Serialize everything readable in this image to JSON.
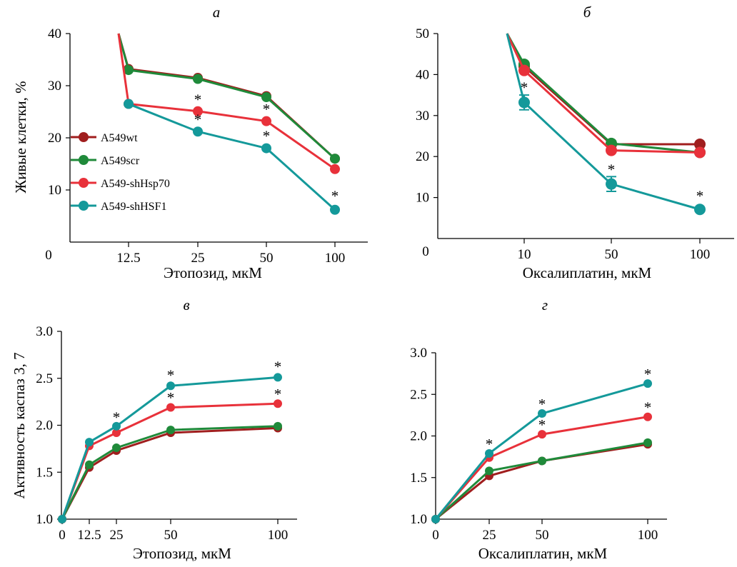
{
  "figure": {
    "ylabel_top": "Живые клетки, %",
    "ylabel_bottom": "Активность каспаз 3, 7"
  },
  "colors": {
    "A549wt": "#a01e1e",
    "A549scr": "#1f8a3a",
    "A549-shHsp70": "#e8313a",
    "A549-shHSF1": "#14999a"
  },
  "legend": [
    "A549wt",
    "A549scr",
    "A549-shHsp70",
    "A549-shHSF1"
  ],
  "chart_data": [
    {
      "type": "line",
      "panel": "a",
      "title": "а",
      "xlabel": "Этопозид, мкМ",
      "ylabel": "Живые клетки, %",
      "ylim": [
        0,
        40
      ],
      "yticks": [
        "0",
        "10",
        "20",
        "30",
        "40"
      ],
      "xticks": [
        "0",
        "12.5",
        "25",
        "50",
        "100"
      ],
      "categories": [
        "12.5",
        "25",
        "50",
        "100"
      ],
      "series": [
        {
          "name": "A549wt",
          "values": [
            33.2,
            31.5,
            28.0,
            16.0
          ],
          "entry_from": 40
        },
        {
          "name": "A549scr",
          "values": [
            33.0,
            31.3,
            27.8,
            16.0
          ],
          "entry_from": 40
        },
        {
          "name": "A549-shHsp70",
          "values": [
            26.5,
            25.1,
            23.2,
            14.0
          ],
          "entry_from": 40
        },
        {
          "name": "A549-shHSF1",
          "values": [
            26.5,
            21.2,
            18.0,
            6.2
          ]
        }
      ],
      "stars": [
        [
          "25",
          27.5
        ],
        [
          "25",
          23.6
        ],
        [
          "50",
          25.6
        ],
        [
          "50",
          20.5
        ],
        [
          "100",
          9.0
        ]
      ],
      "legend_position": "left"
    },
    {
      "type": "line",
      "panel": "b",
      "title": "б",
      "xlabel": "Оксалиплатин, мкМ",
      "ylabel": "",
      "ylim": [
        0,
        50
      ],
      "yticks": [
        "0",
        "10",
        "20",
        "30",
        "40",
        "50"
      ],
      "xticks": [
        "0",
        "10",
        "50",
        "100"
      ],
      "categories": [
        "10",
        "50",
        "100"
      ],
      "series": [
        {
          "name": "A549wt",
          "values": [
            42.0,
            23.0,
            23.0
          ],
          "entry_from": 50
        },
        {
          "name": "A549scr",
          "values": [
            42.5,
            23.2,
            21.0
          ],
          "entry_from": 50
        },
        {
          "name": "A549-shHsp70",
          "values": [
            41.0,
            21.5,
            21.0
          ],
          "entry_from": 50
        },
        {
          "name": "A549-shHSF1",
          "values": [
            33.2,
            13.3,
            7.1
          ],
          "entry_from": 50,
          "err": [
            1.8,
            1.8,
            0
          ]
        }
      ],
      "stars": [
        [
          "10",
          37.0
        ],
        [
          "50",
          17.0
        ],
        [
          "100",
          10.5
        ]
      ]
    },
    {
      "type": "line",
      "panel": "c",
      "title": "в",
      "xlabel": "Этопозид, мкМ",
      "ylabel": "Активность каспаз 3, 7",
      "ylim": [
        1.0,
        3.0
      ],
      "yticks": [
        "1.0",
        "1.5",
        "2.0",
        "2.5",
        "3.0"
      ],
      "x": [
        0,
        12.5,
        25,
        50,
        100
      ],
      "xticks": [
        "0",
        "12.5",
        "25",
        "50",
        "100"
      ],
      "series": [
        {
          "name": "A549wt",
          "values": [
            1.0,
            1.55,
            1.73,
            1.92,
            1.97
          ]
        },
        {
          "name": "A549scr",
          "values": [
            1.0,
            1.58,
            1.76,
            1.95,
            1.99
          ]
        },
        {
          "name": "A549-shHsp70",
          "values": [
            1.0,
            1.78,
            1.92,
            2.19,
            2.23
          ]
        },
        {
          "name": "A549-shHSF1",
          "values": [
            1.0,
            1.82,
            1.99,
            2.42,
            2.51
          ]
        }
      ],
      "stars": [
        [
          25,
          2.09
        ],
        [
          50,
          2.54
        ],
        [
          50,
          2.3
        ],
        [
          100,
          2.63
        ],
        [
          100,
          2.34
        ]
      ]
    },
    {
      "type": "line",
      "panel": "d",
      "title": "г",
      "xlabel": "Оксалиплатин, мкМ",
      "ylabel": "",
      "ylim": [
        1.0,
        3.0
      ],
      "yticks": [
        "1.0",
        "1.5",
        "2.0",
        "2.5",
        "3.0"
      ],
      "x": [
        0,
        25,
        50,
        100
      ],
      "xticks": [
        "0",
        "25",
        "50",
        "100"
      ],
      "series": [
        {
          "name": "A549wt",
          "values": [
            1.0,
            1.52,
            1.7,
            1.9
          ]
        },
        {
          "name": "A549scr",
          "values": [
            1.0,
            1.58,
            1.7,
            1.92
          ]
        },
        {
          "name": "A549-shHsp70",
          "values": [
            1.0,
            1.74,
            2.02,
            2.23
          ]
        },
        {
          "name": "A549-shHSF1",
          "values": [
            1.0,
            1.79,
            2.27,
            2.63
          ]
        }
      ],
      "stars": [
        [
          25,
          1.91
        ],
        [
          50,
          2.39
        ],
        [
          50,
          2.14
        ],
        [
          100,
          2.75
        ],
        [
          100,
          2.35
        ]
      ]
    }
  ]
}
